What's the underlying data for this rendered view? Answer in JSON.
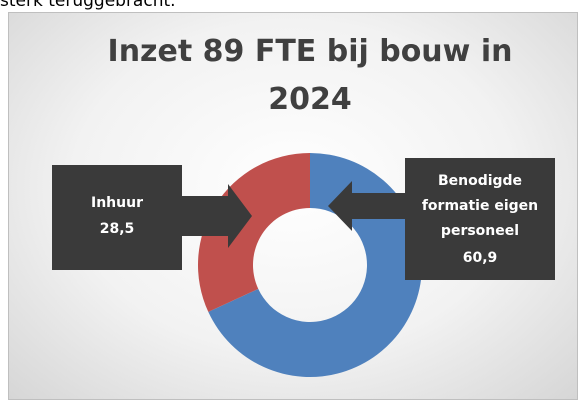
{
  "note": "sterk teruggebracht.",
  "chart_data": {
    "type": "donut",
    "title": "Inzet 89 FTE bij bouw in 2024",
    "categories": [
      "Inhuur",
      "Benodigde formatie eigen personeel"
    ],
    "values": [
      28.5,
      60.9
    ],
    "value_labels": [
      "28,5",
      "60,9"
    ],
    "colors": [
      "#c0504d",
      "#4f81bd"
    ]
  }
}
